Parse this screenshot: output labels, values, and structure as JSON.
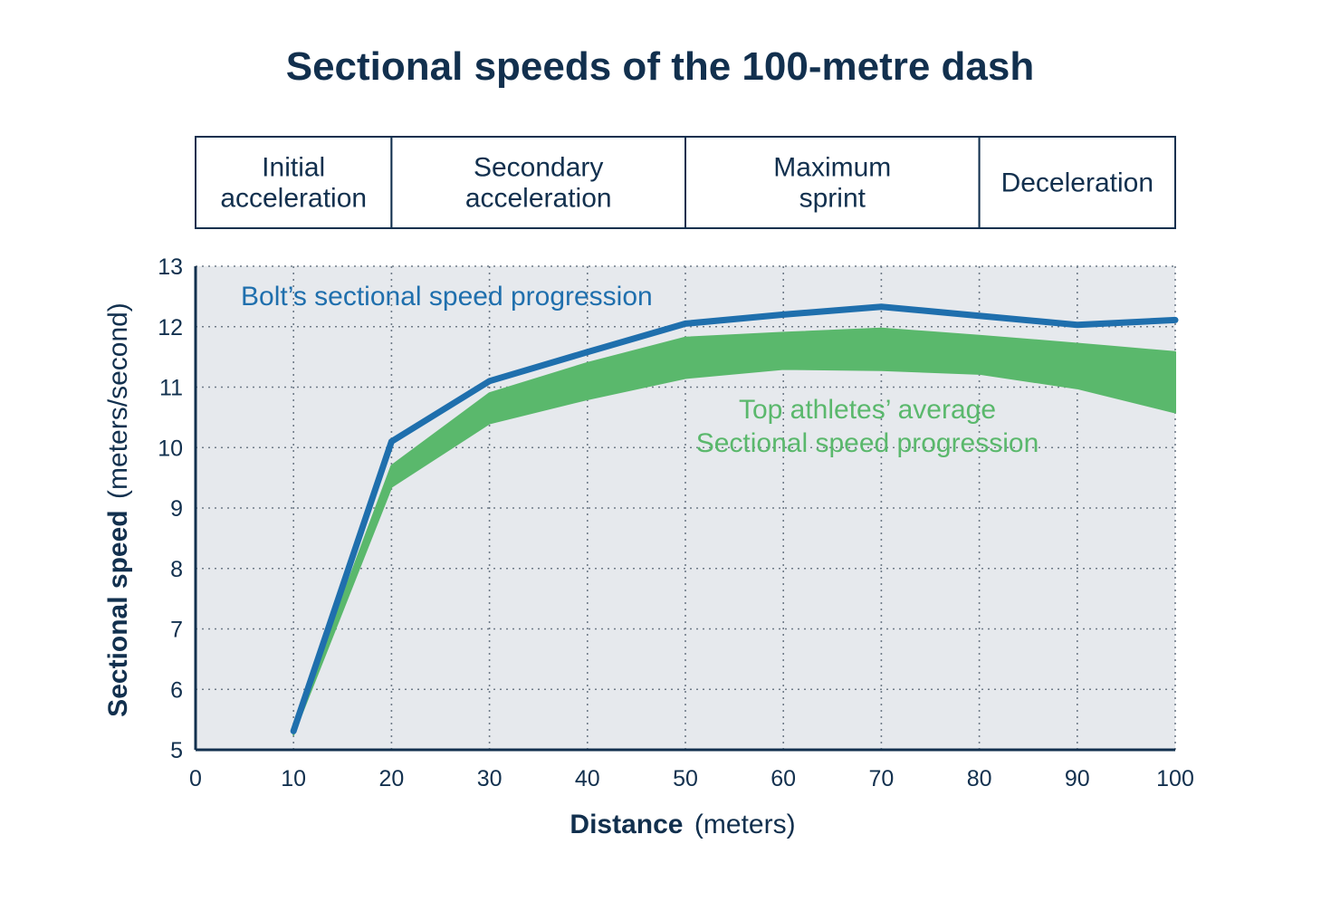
{
  "title": "Sectional speeds of the 100-metre dash",
  "phases": [
    {
      "lines": [
        "Initial",
        "acceleration"
      ],
      "from": 0,
      "to": 20
    },
    {
      "lines": [
        "Secondary",
        "acceleration"
      ],
      "from": 20,
      "to": 50
    },
    {
      "lines": [
        "Maximum",
        "sprint"
      ],
      "from": 50,
      "to": 80
    },
    {
      "lines": [
        "Deceleration"
      ],
      "from": 80,
      "to": 100
    }
  ],
  "annotations": {
    "bolt": "Bolt’s sectional speed progression",
    "avg_line1": "Top athletes’ average",
    "avg_line2": "Sectional speed progression"
  },
  "colors": {
    "bolt": "#1f6fad",
    "average_band": "#5ab86c",
    "plot_background": "#e6e9ed",
    "text": "#12304e"
  },
  "chart_data": {
    "type": "line",
    "title": "Sectional speeds of the 100-metre dash",
    "xlabel_bold": "Distance",
    "xlabel_unit": "(meters)",
    "ylabel_bold": "Sectional speed",
    "ylabel_unit": "(meters/second)",
    "xlim": [
      0,
      100
    ],
    "ylim": [
      5,
      13
    ],
    "x_ticks": [
      0,
      10,
      20,
      30,
      40,
      50,
      60,
      70,
      80,
      90,
      100
    ],
    "y_ticks": [
      5,
      6,
      7,
      8,
      9,
      10,
      11,
      12,
      13
    ],
    "grid": "dotted",
    "series": [
      {
        "name": "Bolt’s sectional speed progression",
        "x": [
          10,
          20,
          30,
          40,
          50,
          60,
          70,
          80,
          90,
          100
        ],
        "values": [
          5.31,
          10.1,
          11.1,
          11.58,
          12.05,
          12.2,
          12.33,
          12.18,
          12.03,
          12.11
        ]
      },
      {
        "name": "Top athletes’ average Sectional speed progression",
        "type": "band",
        "x": [
          10,
          20,
          30,
          40,
          50,
          60,
          70,
          80,
          90,
          100
        ],
        "upper": [
          5.35,
          9.7,
          10.9,
          11.4,
          11.82,
          11.9,
          11.97,
          11.85,
          11.72,
          11.58
        ],
        "lower": [
          5.25,
          9.35,
          10.4,
          10.8,
          11.15,
          11.3,
          11.28,
          11.22,
          10.98,
          10.58
        ]
      }
    ]
  }
}
